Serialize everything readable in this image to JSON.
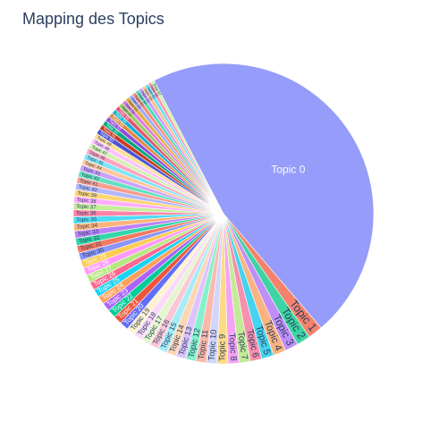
{
  "chart_data": {
    "type": "pie",
    "title": "Mapping des Topics",
    "sort": "descending",
    "direction": "clockwise",
    "legend": "none",
    "slices": [
      {
        "label": "Topic 0",
        "value": 37.4,
        "color": "#959cf9"
      },
      {
        "label": "Topic 1",
        "value": 1.25,
        "color": "#f5826c"
      },
      {
        "label": "Topic 2",
        "value": 1.2,
        "color": "#3ed4a3"
      },
      {
        "label": "Topic 3",
        "value": 1.15,
        "color": "#c08ef7"
      },
      {
        "label": "Topic 4",
        "value": 1.1,
        "color": "#fbb47f"
      },
      {
        "label": "Topic 5",
        "value": 1.05,
        "color": "#45d3ef"
      },
      {
        "label": "Topic 6",
        "value": 1.0,
        "color": "#f78fae"
      },
      {
        "label": "Topic 7",
        "value": 0.98,
        "color": "#c4ea98"
      },
      {
        "label": "Topic 8",
        "value": 0.96,
        "color": "#f6a3f5"
      },
      {
        "label": "Topic 9",
        "value": 0.94,
        "color": "#fdda85"
      },
      {
        "label": "Topic 10",
        "value": 0.92,
        "color": "#d2d6fc"
      },
      {
        "label": "Topic 11",
        "value": 0.9,
        "color": "#fcb8a8"
      },
      {
        "label": "Topic 12",
        "value": 0.88,
        "color": "#86f0cd"
      },
      {
        "label": "Topic 13",
        "value": 0.86,
        "color": "#ddc4fb"
      },
      {
        "label": "Topic 14",
        "value": 0.84,
        "color": "#fdd6b4"
      },
      {
        "label": "Topic 15",
        "value": 0.82,
        "color": "#a6ecf7"
      },
      {
        "label": "Topic 16",
        "value": 0.8,
        "color": "#fbc7d5"
      },
      {
        "label": "Topic 17",
        "value": 0.79,
        "color": "#e4f6cf"
      },
      {
        "label": "Topic 18",
        "value": 0.78,
        "color": "#fad9f9"
      },
      {
        "label": "Topic 19",
        "value": 0.77,
        "color": "#fff2cf"
      },
      {
        "label": "Topic 20",
        "value": 0.76,
        "color": "#636efa"
      },
      {
        "label": "Topic 21",
        "value": 0.75,
        "color": "#ef553b"
      },
      {
        "label": "Topic 22",
        "value": 0.74,
        "color": "#00cc96"
      },
      {
        "label": "Topic 23",
        "value": 0.73,
        "color": "#ab63fa"
      },
      {
        "label": "Topic 24",
        "value": 0.72,
        "color": "#ffa15a"
      },
      {
        "label": "Topic 25",
        "value": 0.71,
        "color": "#19d3f3"
      },
      {
        "label": "Topic 26",
        "value": 0.7,
        "color": "#ff6692"
      },
      {
        "label": "Topic 27",
        "value": 0.69,
        "color": "#b6e880"
      },
      {
        "label": "Topic 28",
        "value": 0.68,
        "color": "#ff97ff"
      },
      {
        "label": "Topic 29",
        "value": 0.67,
        "color": "#fecb52"
      },
      {
        "label": "Topic 30",
        "value": 0.66,
        "color": "#8b95f8"
      },
      {
        "label": "Topic 31",
        "value": 0.65,
        "color": "#f47a63"
      },
      {
        "label": "Topic 32",
        "value": 0.64,
        "color": "#33d6a8"
      },
      {
        "label": "Topic 33",
        "value": 0.63,
        "color": "#bb82f9"
      },
      {
        "label": "Topic 34",
        "value": 0.62,
        "color": "#ffb47c"
      },
      {
        "label": "Topic 35",
        "value": 0.61,
        "color": "#4cdcf5"
      },
      {
        "label": "Topic 36",
        "value": 0.6,
        "color": "#ff85a8"
      },
      {
        "label": "Topic 37",
        "value": 0.59,
        "color": "#c5ed99"
      },
      {
        "label": "Topic 38",
        "value": 0.58,
        "color": "#ffacff"
      },
      {
        "label": "Topic 39",
        "value": 0.57,
        "color": "#fed575"
      },
      {
        "label": "Topic 40",
        "value": 0.56,
        "color": "#b1b7fc"
      },
      {
        "label": "Topic 41",
        "value": 0.55,
        "color": "#f79f8f"
      },
      {
        "label": "Topic 42",
        "value": 0.54,
        "color": "#66e0be"
      },
      {
        "label": "Topic 43",
        "value": 0.53,
        "color": "#cca1fb"
      },
      {
        "label": "Topic 44",
        "value": 0.52,
        "color": "#ffc89e"
      },
      {
        "label": "Topic 45",
        "value": 0.51,
        "color": "#7fe5f8"
      },
      {
        "label": "Topic 46",
        "value": 0.5,
        "color": "#ffa3be"
      },
      {
        "label": "Topic 47",
        "value": 0.49,
        "color": "#d3f1b3"
      },
      {
        "label": "Topic 48",
        "value": 0.48,
        "color": "#ffc1ff"
      },
      {
        "label": "Topic 49",
        "value": 0.47,
        "color": "#fedf97"
      },
      {
        "label": "Topic 50",
        "value": 0.46,
        "color": "#4a55d6"
      },
      {
        "label": "Topic 51",
        "value": 0.45,
        "color": "#c93c24"
      },
      {
        "label": "Topic 52",
        "value": 0.44,
        "color": "#00a97c"
      },
      {
        "label": "Topic 53",
        "value": 0.43,
        "color": "#8f49dc"
      },
      {
        "label": "Topic 54",
        "value": 0.42,
        "color": "#e08a43"
      },
      {
        "label": "Topic 55",
        "value": 0.41,
        "color": "#12b3cf"
      },
      {
        "label": "Topic 56",
        "value": 0.4,
        "color": "#e24f79"
      },
      {
        "label": "Topic 57",
        "value": 0.39,
        "color": "#99cc63"
      },
      {
        "label": "Topic 58",
        "value": 0.38,
        "color": "#e07de0"
      },
      {
        "label": "Topic 59",
        "value": 0.37,
        "color": "#e3ae38"
      },
      {
        "label": "Topic 60",
        "value": 0.36,
        "color": "#a1a8fb"
      },
      {
        "label": "Topic 61",
        "value": 0.35,
        "color": "#f58d7b"
      },
      {
        "label": "Topic 62",
        "value": 0.34,
        "color": "#4ddbb5"
      },
      {
        "label": "Topic 63",
        "value": 0.33,
        "color": "#c79bfb"
      },
      {
        "label": "Topic 64",
        "value": 0.32,
        "color": "#ffbd8a"
      },
      {
        "label": "Topic 65",
        "value": 0.31,
        "color": "#63dff6"
      },
      {
        "label": "Topic 66",
        "value": 0.3,
        "color": "#ff94b3"
      },
      {
        "label": "Topic 67",
        "value": 0.29,
        "color": "#ccf1a9"
      }
    ]
  }
}
